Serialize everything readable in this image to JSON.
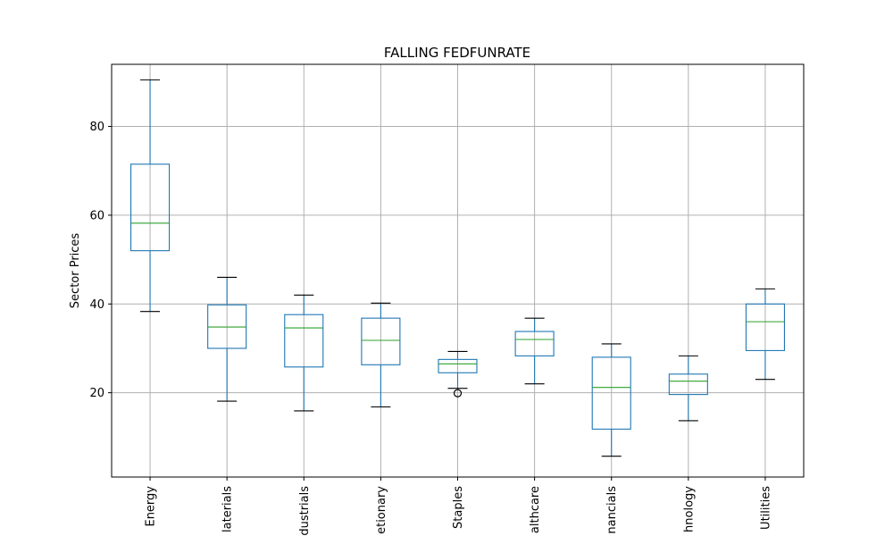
{
  "chart_data": {
    "type": "box",
    "title": "FALLING FEDFUNRATE",
    "ylabel": "Sector Prices",
    "xlabel": "",
    "ylim": [
      1,
      94
    ],
    "yticks": [
      20,
      40,
      60,
      80
    ],
    "grid": true,
    "categories": [
      "Energy",
      "Materials",
      "Industrials",
      "Consumer Discretionary",
      "Consumer Staples",
      "Healthcare",
      "Financials",
      "Technology",
      "Utilities"
    ],
    "category_labels_visible": [
      "Energy",
      "laterials",
      "dustrials",
      "etionary",
      "Staples",
      "althcare",
      "nancials",
      "hnology",
      "Utilities"
    ],
    "boxes": [
      {
        "whislo": 38.3,
        "q1": 52.0,
        "med": 58.2,
        "q3": 71.5,
        "whishi": 90.5,
        "fliers": []
      },
      {
        "whislo": 18.1,
        "q1": 30.0,
        "med": 34.8,
        "q3": 39.8,
        "whishi": 46.0,
        "fliers": []
      },
      {
        "whislo": 15.9,
        "q1": 25.8,
        "med": 34.6,
        "q3": 37.6,
        "whishi": 42.0,
        "fliers": []
      },
      {
        "whislo": 16.8,
        "q1": 26.3,
        "med": 31.8,
        "q3": 36.8,
        "whishi": 40.2,
        "fliers": []
      },
      {
        "whislo": 21.0,
        "q1": 24.5,
        "med": 26.5,
        "q3": 27.5,
        "whishi": 29.3,
        "fliers": [
          19.9
        ]
      },
      {
        "whislo": 22.0,
        "q1": 28.3,
        "med": 32.0,
        "q3": 33.8,
        "whishi": 36.8,
        "fliers": []
      },
      {
        "whislo": 5.7,
        "q1": 11.8,
        "med": 21.2,
        "q3": 28.0,
        "whishi": 31.0,
        "fliers": []
      },
      {
        "whislo": 13.7,
        "q1": 19.6,
        "med": 22.6,
        "q3": 24.2,
        "whishi": 28.3,
        "fliers": []
      },
      {
        "whislo": 23.0,
        "q1": 29.5,
        "med": 36.0,
        "q3": 40.0,
        "whishi": 43.4,
        "fliers": []
      }
    ],
    "colors": {
      "box": "#1f77b4",
      "median": "#2ca02c",
      "whisker_cap": "#000000",
      "grid": "#b0b0b0"
    }
  }
}
